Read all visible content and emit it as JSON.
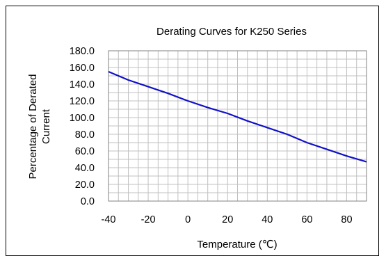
{
  "chart_data": {
    "type": "line",
    "title": "Derating Curves for K250 Series",
    "xlabel": "Temperature (℃)",
    "ylabel_lines": [
      "Percentage of Derated",
      "Current"
    ],
    "xlim": [
      -40,
      90
    ],
    "ylim": [
      0,
      180
    ],
    "x_ticks": [
      -40,
      -20,
      0,
      20,
      40,
      60,
      80
    ],
    "x_tick_labels": [
      "-40",
      "-20",
      "0",
      "20",
      "40",
      "60",
      "80"
    ],
    "y_ticks": [
      0,
      20,
      40,
      60,
      80,
      100,
      120,
      140,
      160,
      180
    ],
    "y_tick_labels": [
      "0.0",
      "20.0",
      "40.0",
      "60.0",
      "80.0",
      "100.0",
      "120.0",
      "140.0",
      "160.0",
      "180.0"
    ],
    "grid": true,
    "grid_x_step": 5,
    "grid_y_step": 10,
    "series": [
      {
        "color": "#1010c8",
        "x": [
          -40,
          -30,
          -20,
          -10,
          0,
          10,
          20,
          30,
          40,
          50,
          60,
          70,
          80,
          90
        ],
        "y": [
          155,
          145,
          137,
          129,
          120,
          112,
          105,
          96,
          88,
          80,
          70,
          62,
          54,
          47
        ]
      }
    ]
  }
}
